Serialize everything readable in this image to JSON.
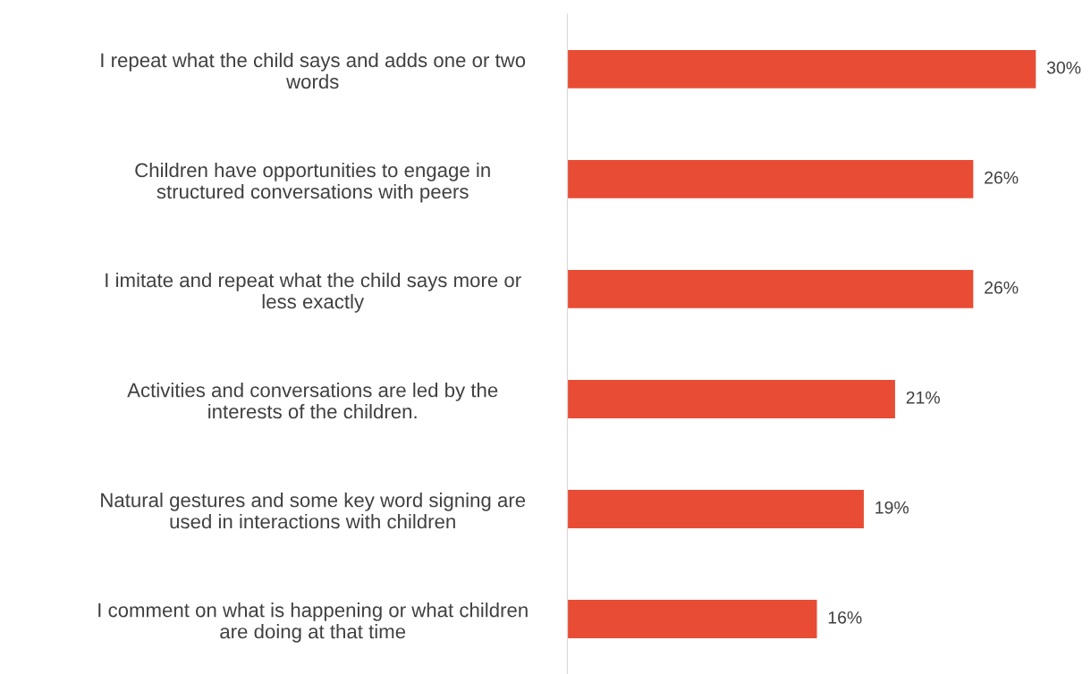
{
  "chart_data": {
    "type": "bar",
    "orientation": "horizontal",
    "categories": [
      "I repeat what the child says and adds one or two\nwords",
      "Children have opportunities to engage in\nstructured conversations with peers",
      "I imitate and repeat what the child says more or\nless exactly",
      "Activities and conversations are led by the\ninterests of the children.",
      "Natural gestures and some key word signing are\nused in interactions with children",
      "I comment on what is happening or what children\nare doing at that time"
    ],
    "values": [
      30,
      26,
      26,
      21,
      19,
      16
    ],
    "value_labels": [
      "30%",
      "26%",
      "26%",
      "21%",
      "19%",
      "16%"
    ],
    "color": "#e84c35",
    "grid": false,
    "legend": false
  }
}
